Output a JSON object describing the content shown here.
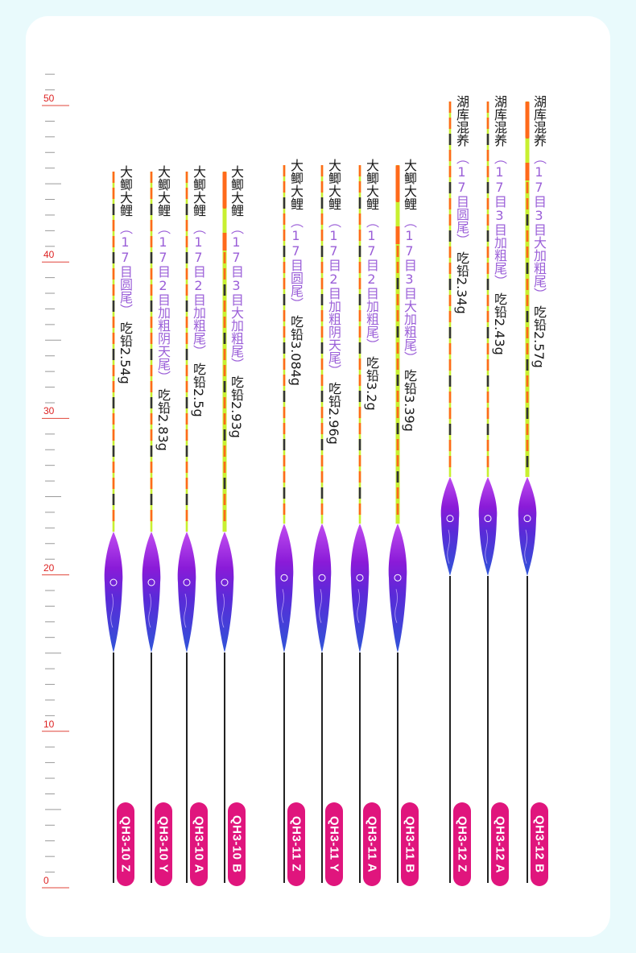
{
  "ruler": {
    "labels": [
      "0",
      "10",
      "20",
      "30",
      "40",
      "50"
    ],
    "major_color": "#e0443a",
    "minor_color": "#9a9a9a"
  },
  "colors": {
    "background": "#e9fafc",
    "card": "#ffffff",
    "tip_orange": "#ff6a1a",
    "tip_green": "#c8f030",
    "body_purple": "#8a1bd8",
    "body_blue": "#2f55d8",
    "badge_pink": "#e0157d",
    "label_purple": "#9b5fd8"
  },
  "floats": [
    {
      "code": "QH3-10 Z",
      "category": "大鲫大鲤",
      "tail": "（17目圆尾）",
      "lead": "吃铅2.54g",
      "tip_style": "thin"
    },
    {
      "code": "QH3-10 Y",
      "category": "大鲫大鲤",
      "tail": "（17目2目加粗阴天尾）",
      "lead": "吃铅2.83g",
      "tip_style": "thin"
    },
    {
      "code": "QH3-10 A",
      "category": "大鲫大鲤",
      "tail": "（17目2目加粗尾）",
      "lead": "吃铅2.5g",
      "tip_style": "thin"
    },
    {
      "code": "QH3-10 B",
      "category": "大鲫大鲤",
      "tail": "（17目3目大加粗尾）",
      "lead": "吃铅2.93g",
      "tip_style": "thick"
    },
    {
      "code": "QH3-11 Z",
      "category": "大鲫大鲤",
      "tail": "（17目圆尾）",
      "lead": "吃铅3.084g",
      "tip_style": "thin"
    },
    {
      "code": "QH3-11 Y",
      "category": "大鲫大鲤",
      "tail": "（17目2目加粗阴天尾）",
      "lead": "吃铅2.96g",
      "tip_style": "thin"
    },
    {
      "code": "QH3-11 A",
      "category": "大鲫大鲤",
      "tail": "（17目2目加粗尾）",
      "lead": "吃铅3.2g",
      "tip_style": "thin"
    },
    {
      "code": "QH3-11 B",
      "category": "大鲫大鲤",
      "tail": "（17目3目大加粗尾）",
      "lead": "吃铅3.39g",
      "tip_style": "thick"
    },
    {
      "code": "QH3-12 Z",
      "category": "湖库混养",
      "tail": "（17目圆尾）",
      "lead": "吃铅2.34g",
      "tip_style": "thin"
    },
    {
      "code": "QH3-12 A",
      "category": "湖库混养",
      "tail": "（17目3目加粗尾）",
      "lead": "吃铅2.43g",
      "tip_style": "thin"
    },
    {
      "code": "QH3-12 B",
      "category": "湖库混养",
      "tail": "（17目3目大加粗尾）",
      "lead": "吃铅2.57g",
      "tip_style": "thick"
    }
  ]
}
